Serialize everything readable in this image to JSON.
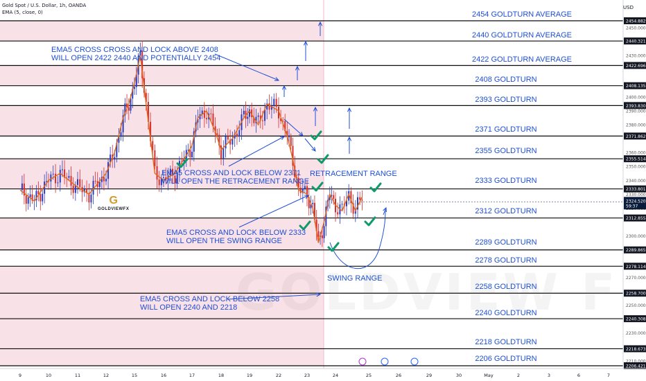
{
  "header": {
    "symbol": "Gold Spot / U.S. Dollar, 1h, OANDA",
    "indicator": "EMA (5, close, 0)",
    "currency": "USD"
  },
  "watermark": "GOLDVIEW F",
  "logo": {
    "mark": "G",
    "text": "GOLDVIEWFX"
  },
  "colors": {
    "level_line": "#0a0a0a",
    "zone_fill": "#f9e1e8",
    "label_blue": "#1e4fd6",
    "candle_up": "#2b3bbd",
    "candle_down": "#d62c2c",
    "ema": "#e06a1c",
    "check": "#109a6a",
    "price_tag": "#131722",
    "current_tag": "#0b1c3a"
  },
  "chart_data": {
    "type": "line",
    "title": "Gold Spot / U.S. Dollar, 1h, OANDA",
    "ylim": [
      2203,
      2462
    ],
    "x_ticks": [
      "9",
      "10",
      "11",
      "12",
      "15",
      "16",
      "17",
      "18",
      "19",
      "22",
      "23",
      "24",
      "25",
      "26",
      "29",
      "30",
      "May",
      "2",
      "3",
      "6",
      "7"
    ],
    "y_ticks": [
      2210,
      2220,
      2230,
      2240,
      2250,
      2260,
      2270,
      2280,
      2290,
      2300,
      2310,
      2320,
      2330,
      2340,
      2350,
      2360,
      2370,
      2380,
      2390,
      2400,
      2410,
      2420,
      2430,
      2440,
      2450
    ],
    "levels": [
      {
        "price": 2454.882,
        "tag": "2454.882",
        "label": "2454 GOLDTURN AVERAGE"
      },
      {
        "price": 2440.321,
        "tag": "2440.321",
        "label": "2440 GOLDTURN AVERAGE"
      },
      {
        "price": 2422.696,
        "tag": "2422.696",
        "label": "2422 GOLDTURN AVERAGE"
      },
      {
        "price": 2408.135,
        "tag": "2408.135",
        "label": "2408 GOLDTURN"
      },
      {
        "price": 2393.83,
        "tag": "2393.830",
        "label": "2393 GOLDTURN"
      },
      {
        "price": 2371.862,
        "tag": "2371.862",
        "label": "2371 GOLDTURN"
      },
      {
        "price": 2355.514,
        "tag": "2355.514",
        "label": "2355 GOLDTURN"
      },
      {
        "price": 2333.801,
        "tag": "2333.801",
        "label": "2333 GOLDTURN"
      },
      {
        "price": 2312.855,
        "tag": "2312.855",
        "label": "2312 GOLDTURN"
      },
      {
        "price": 2289.865,
        "tag": "2289.865",
        "label": "2289 GOLDTURN"
      },
      {
        "price": 2278.114,
        "tag": "2278.114",
        "label": "2278 GOLDTURN"
      },
      {
        "price": 2258.7,
        "tag": "2258.700",
        "label": "2258 GOLDTURN"
      },
      {
        "price": 2240.308,
        "tag": "2240.308",
        "label": "2240 GOLDTURN"
      },
      {
        "price": 2218.673,
        "tag": "2218.673",
        "label": "2218 GOLDTURN"
      },
      {
        "price": 2206.421,
        "tag": "2206.421",
        "label": "2206 GOLDTURN"
      }
    ],
    "zones": [
      [
        2440.321,
        2454.882
      ],
      [
        2408.135,
        2422.696
      ],
      [
        2371.862,
        2393.83
      ],
      [
        2333.801,
        2355.514
      ],
      [
        2289.865,
        2312.855
      ],
      [
        2206.421,
        2278.114
      ]
    ],
    "current_price": {
      "price": 2324.52,
      "tag": "2324.520",
      "countdown": "59:37"
    },
    "price_series": [
      {
        "name": "price",
        "x": [
          0.0,
          0.5,
          1.0,
          1.4,
          2.0,
          2.4,
          3.0,
          3.3,
          3.6,
          3.8,
          4.0,
          4.2,
          4.4,
          4.7,
          5.0,
          5.4,
          5.8,
          6.0,
          6.2,
          6.5,
          6.8,
          7.0,
          7.4,
          7.8,
          8.0,
          8.3,
          8.6,
          9.0,
          9.3,
          9.5,
          9.7,
          10.0,
          10.2,
          10.4,
          10.6,
          10.8,
          11.0,
          11.2,
          11.4,
          11.6,
          11.8
        ],
        "values": [
          2333,
          2325,
          2340,
          2345,
          2335,
          2330,
          2345,
          2360,
          2385,
          2395,
          2410,
          2430,
          2395,
          2345,
          2340,
          2345,
          2358,
          2365,
          2385,
          2390,
          2375,
          2362,
          2370,
          2385,
          2390,
          2380,
          2395,
          2390,
          2372,
          2355,
          2333,
          2330,
          2320,
          2295,
          2310,
          2330,
          2322,
          2318,
          2330,
          2318,
          2328
        ]
      }
    ],
    "annotations": [
      "EMA5 CROSS CROSS AND LOCK ABOVE 2408",
      "WILL OPEN 2422 2440 AND POTENTIALLY 2454",
      "EMA5 CROSS AND LOCK BELOW 2371",
      "WILL OPEN THE RETRACEMENT RANGE",
      "EMA5 CROSS AND LOCK BELOW 2333",
      "WILL OPEN THE SWING RANGE",
      "EMA5 CROSS AND LOCK BELOW 2258",
      "WILL OPEN 2240 AND 2218",
      "RETRACEMENT RANGE",
      "SWING RANGE"
    ]
  }
}
